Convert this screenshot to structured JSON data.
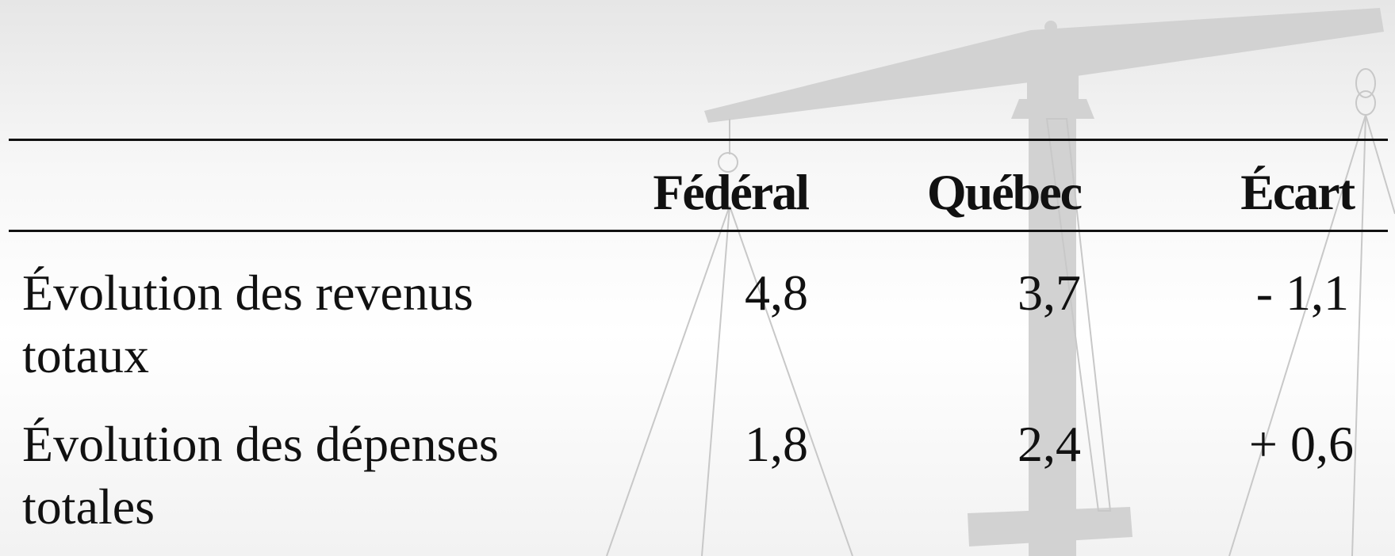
{
  "table": {
    "columns": [
      "Fédéral",
      "Québec",
      "Écart"
    ],
    "rows": [
      {
        "label": "Évolution des revenus totaux",
        "cells": [
          "4,8",
          "3,7",
          "- 1,1"
        ]
      },
      {
        "label": "Évolution des dépenses totales",
        "cells": [
          "1,8",
          "2,4",
          "+ 0,6"
        ]
      }
    ]
  }
}
